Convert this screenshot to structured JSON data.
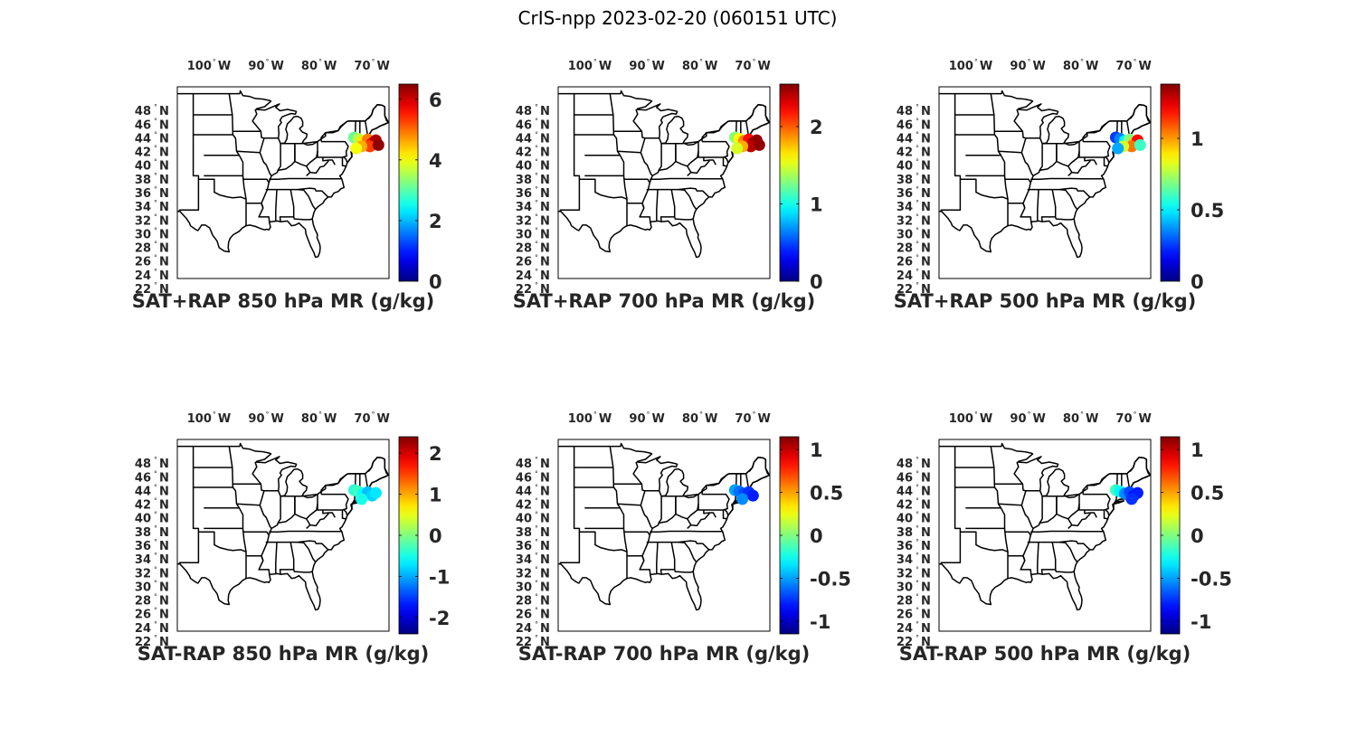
{
  "figure": {
    "title": "CrIS-npp 2023-02-20 (060151 UTC)"
  },
  "lon_ticks": [
    {
      "deg": "100",
      "hemi": "W",
      "lon": -100
    },
    {
      "deg": "90",
      "hemi": "W",
      "lon": -90
    },
    {
      "deg": "80",
      "hemi": "W",
      "lon": -80
    },
    {
      "deg": "70",
      "hemi": "W",
      "lon": -70
    }
  ],
  "lat_ticks": [
    {
      "deg": "48",
      "hemi": "N",
      "lat": 48
    },
    {
      "deg": "46",
      "hemi": "N",
      "lat": 46
    },
    {
      "deg": "44",
      "hemi": "N",
      "lat": 44
    },
    {
      "deg": "42",
      "hemi": "N",
      "lat": 42
    },
    {
      "deg": "40",
      "hemi": "N",
      "lat": 40
    },
    {
      "deg": "38",
      "hemi": "N",
      "lat": 38
    },
    {
      "deg": "36",
      "hemi": "N",
      "lat": 36
    },
    {
      "deg": "34",
      "hemi": "N",
      "lat": 34
    },
    {
      "deg": "32",
      "hemi": "N",
      "lat": 32
    },
    {
      "deg": "30",
      "hemi": "N",
      "lat": 30
    },
    {
      "deg": "28",
      "hemi": "N",
      "lat": 28
    },
    {
      "deg": "26",
      "hemi": "N",
      "lat": 26
    },
    {
      "deg": "24",
      "hemi": "N",
      "lat": 24
    },
    {
      "deg": "22",
      "hemi": "N",
      "lat": 22
    }
  ],
  "map_extent": {
    "lon": [
      -107,
      -67
    ],
    "lat": [
      22,
      50
    ]
  },
  "colormap": "jet",
  "panels": [
    {
      "id": "sat-rap-sum-850",
      "title": "SAT+RAP 850 hPa MR (g/kg)",
      "clim": [
        0,
        6.5
      ],
      "cbar_ticks": [
        "0",
        "2",
        "4",
        "6"
      ],
      "cbar_values": [
        0,
        2,
        4,
        6
      ],
      "points": [
        {
          "lon": -73.6,
          "lat": 42.6,
          "v": 3.1
        },
        {
          "lon": -72.8,
          "lat": 42.4,
          "v": 3.6
        },
        {
          "lon": -71.9,
          "lat": 42.1,
          "v": 4.2
        },
        {
          "lon": -71.0,
          "lat": 42.3,
          "v": 4.9
        },
        {
          "lon": -70.2,
          "lat": 41.8,
          "v": 5.6
        },
        {
          "lon": -69.5,
          "lat": 42.2,
          "v": 6.2
        },
        {
          "lon": -70.6,
          "lat": 41.3,
          "v": 5.3
        },
        {
          "lon": -69.0,
          "lat": 41.5,
          "v": 6.4
        },
        {
          "lon": -72.2,
          "lat": 41.3,
          "v": 4.6
        },
        {
          "lon": -73.2,
          "lat": 41.0,
          "v": 4.0
        }
      ]
    },
    {
      "id": "sat-rap-sum-700",
      "title": "SAT+RAP 700 hPa MR (g/kg)",
      "clim": [
        0,
        2.55
      ],
      "cbar_ticks": [
        "0",
        "1",
        "2"
      ],
      "cbar_values": [
        0,
        1,
        2
      ],
      "points": [
        {
          "lon": -73.6,
          "lat": 42.6,
          "v": 1.3
        },
        {
          "lon": -72.8,
          "lat": 42.4,
          "v": 1.6
        },
        {
          "lon": -71.9,
          "lat": 42.1,
          "v": 1.9
        },
        {
          "lon": -71.0,
          "lat": 42.3,
          "v": 2.2
        },
        {
          "lon": -70.2,
          "lat": 41.8,
          "v": 2.45
        },
        {
          "lon": -69.5,
          "lat": 42.2,
          "v": 2.5
        },
        {
          "lon": -70.6,
          "lat": 41.3,
          "v": 2.4
        },
        {
          "lon": -69.0,
          "lat": 41.5,
          "v": 2.5
        },
        {
          "lon": -72.2,
          "lat": 41.3,
          "v": 1.8
        },
        {
          "lon": -73.2,
          "lat": 41.0,
          "v": 1.5
        }
      ]
    },
    {
      "id": "sat-rap-sum-500",
      "title": "SAT+RAP 500 hPa MR (g/kg)",
      "clim": [
        0,
        1.38
      ],
      "cbar_ticks": [
        "0",
        "0.5",
        "1"
      ],
      "cbar_values": [
        0,
        0.5,
        1
      ],
      "points": [
        {
          "lon": -73.6,
          "lat": 42.6,
          "v": 0.25
        },
        {
          "lon": -72.8,
          "lat": 42.4,
          "v": 0.35
        },
        {
          "lon": -71.9,
          "lat": 42.1,
          "v": 0.5
        },
        {
          "lon": -71.0,
          "lat": 42.3,
          "v": 0.7
        },
        {
          "lon": -70.2,
          "lat": 41.8,
          "v": 0.95
        },
        {
          "lon": -69.5,
          "lat": 42.2,
          "v": 1.2
        },
        {
          "lon": -70.6,
          "lat": 41.3,
          "v": 1.05
        },
        {
          "lon": -69.0,
          "lat": 41.5,
          "v": 0.6
        },
        {
          "lon": -72.2,
          "lat": 41.3,
          "v": 0.8
        },
        {
          "lon": -73.2,
          "lat": 41.0,
          "v": 0.4
        }
      ]
    },
    {
      "id": "sat-rap-diff-850",
      "title": "SAT-RAP 850 hPa MR (g/kg)",
      "clim": [
        -2.4,
        2.4
      ],
      "cbar_ticks": [
        "-2",
        "-1",
        "0",
        "1",
        "2"
      ],
      "cbar_values": [
        -2,
        -1,
        0,
        1,
        2
      ],
      "points": [
        {
          "lon": -73.6,
          "lat": 42.6,
          "v": -0.4
        },
        {
          "lon": -72.8,
          "lat": 42.4,
          "v": -0.3
        },
        {
          "lon": -71.9,
          "lat": 42.1,
          "v": -0.6
        },
        {
          "lon": -71.0,
          "lat": 42.3,
          "v": -0.9
        },
        {
          "lon": -70.2,
          "lat": 41.8,
          "v": -0.8
        },
        {
          "lon": -69.5,
          "lat": 42.2,
          "v": -0.7
        },
        {
          "lon": -72.2,
          "lat": 41.3,
          "v": -0.5
        }
      ]
    },
    {
      "id": "sat-rap-diff-700",
      "title": "SAT-RAP 700 hPa MR (g/kg)",
      "clim": [
        -1.15,
        1.15
      ],
      "cbar_ticks": [
        "-1",
        "-0.5",
        "0",
        "0.5",
        "1"
      ],
      "cbar_values": [
        -1,
        -0.5,
        0,
        0.5,
        1
      ],
      "points": [
        {
          "lon": -73.6,
          "lat": 42.6,
          "v": -0.5
        },
        {
          "lon": -72.8,
          "lat": 42.4,
          "v": -0.6
        },
        {
          "lon": -71.9,
          "lat": 42.1,
          "v": -0.7
        },
        {
          "lon": -71.0,
          "lat": 42.3,
          "v": -0.75
        },
        {
          "lon": -70.2,
          "lat": 41.8,
          "v": -0.8
        },
        {
          "lon": -72.2,
          "lat": 41.3,
          "v": -0.55
        }
      ]
    },
    {
      "id": "sat-rap-diff-500",
      "title": "SAT-RAP 500 hPa MR (g/kg)",
      "clim": [
        -1.15,
        1.15
      ],
      "cbar_ticks": [
        "-1",
        "-0.5",
        "0",
        "0.5",
        "1"
      ],
      "cbar_values": [
        -1,
        -0.5,
        0,
        0.5,
        1
      ],
      "points": [
        {
          "lon": -73.6,
          "lat": 42.6,
          "v": -0.15
        },
        {
          "lon": -72.8,
          "lat": 42.4,
          "v": -0.3
        },
        {
          "lon": -71.9,
          "lat": 42.1,
          "v": -0.55
        },
        {
          "lon": -71.0,
          "lat": 42.3,
          "v": -0.7
        },
        {
          "lon": -70.2,
          "lat": 41.8,
          "v": -0.85
        },
        {
          "lon": -69.5,
          "lat": 42.2,
          "v": -0.8
        },
        {
          "lon": -70.6,
          "lat": 41.3,
          "v": -0.75
        }
      ]
    }
  ]
}
